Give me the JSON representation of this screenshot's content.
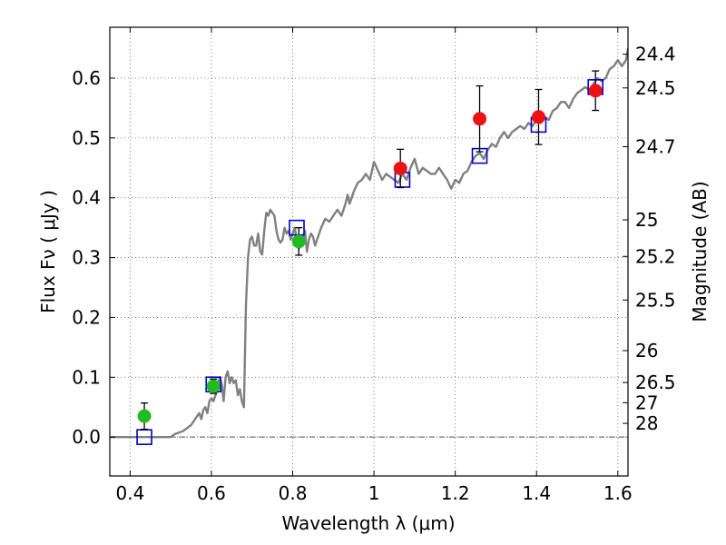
{
  "chart_data": {
    "type": "scatter",
    "title": "",
    "xlabel": "Wavelength  λ (μm)",
    "ylabel": "Flux  Fν  ( μJy )",
    "y2label": "Magnitude (AB)",
    "xlim": [
      0.35,
      1.625
    ],
    "ylim": [
      -0.065,
      0.685
    ],
    "grid": true,
    "xticks": [
      {
        "value": 0.4,
        "label": "0.4"
      },
      {
        "value": 0.6,
        "label": "0.6"
      },
      {
        "value": 0.8,
        "label": "0.8"
      },
      {
        "value": 1.0,
        "label": "1"
      },
      {
        "value": 1.2,
        "label": "1.2"
      },
      {
        "value": 1.4,
        "label": "1.4"
      },
      {
        "value": 1.6,
        "label": "1.6"
      }
    ],
    "yticks": [
      {
        "value": 0.0,
        "label": "0.0"
      },
      {
        "value": 0.1,
        "label": "0.1"
      },
      {
        "value": 0.2,
        "label": "0.2"
      },
      {
        "value": 0.3,
        "label": "0.3"
      },
      {
        "value": 0.4,
        "label": "0.4"
      },
      {
        "value": 0.5,
        "label": "0.5"
      },
      {
        "value": 0.6,
        "label": "0.6"
      }
    ],
    "magnitude_ticks": [
      {
        "flux": 0.6399,
        "label": "24.4"
      },
      {
        "flux": 0.5836,
        "label": "24.5"
      },
      {
        "flux": 0.4854,
        "label": "24.7"
      },
      {
        "flux": 0.3631,
        "label": "25"
      },
      {
        "flux": 0.302,
        "label": "25.2"
      },
      {
        "flux": 0.2291,
        "label": "25.5"
      },
      {
        "flux": 0.1445,
        "label": "26"
      },
      {
        "flux": 0.0912,
        "label": "26.5"
      },
      {
        "flux": 0.0575,
        "label": "27"
      },
      {
        "flux": 0.0229,
        "label": "28"
      }
    ],
    "series": [
      {
        "kind": "spectrum",
        "color": "#808080",
        "x": [
          0.35,
          0.5,
          0.51,
          0.53,
          0.55,
          0.56,
          0.57,
          0.575,
          0.58,
          0.585,
          0.59,
          0.595,
          0.6,
          0.605,
          0.61,
          0.615,
          0.62,
          0.625,
          0.63,
          0.635,
          0.64,
          0.645,
          0.65,
          0.655,
          0.66,
          0.665,
          0.67,
          0.675,
          0.68,
          0.685,
          0.69,
          0.695,
          0.7,
          0.705,
          0.71,
          0.715,
          0.72,
          0.725,
          0.73,
          0.735,
          0.74,
          0.745,
          0.75,
          0.755,
          0.76,
          0.765,
          0.77,
          0.775,
          0.78,
          0.785,
          0.79,
          0.795,
          0.8,
          0.805,
          0.81,
          0.815,
          0.82,
          0.825,
          0.83,
          0.835,
          0.84,
          0.845,
          0.85,
          0.855,
          0.86,
          0.87,
          0.88,
          0.89,
          0.9,
          0.91,
          0.92,
          0.93,
          0.935,
          0.94,
          0.945,
          0.95,
          0.96,
          0.97,
          0.98,
          0.99,
          1.0,
          1.01,
          1.02,
          1.03,
          1.04,
          1.05,
          1.06,
          1.07,
          1.08,
          1.09,
          1.1,
          1.11,
          1.12,
          1.13,
          1.14,
          1.15,
          1.16,
          1.17,
          1.18,
          1.19,
          1.2,
          1.21,
          1.22,
          1.23,
          1.24,
          1.25,
          1.26,
          1.27,
          1.28,
          1.29,
          1.3,
          1.31,
          1.32,
          1.33,
          1.34,
          1.35,
          1.36,
          1.37,
          1.38,
          1.39,
          1.4,
          1.41,
          1.42,
          1.43,
          1.44,
          1.45,
          1.46,
          1.47,
          1.48,
          1.49,
          1.5,
          1.51,
          1.52,
          1.53,
          1.54,
          1.55,
          1.56,
          1.57,
          1.58,
          1.59,
          1.6,
          1.61,
          1.62,
          1.625
        ],
        "y": [
          0.0,
          0.0,
          0.005,
          0.01,
          0.02,
          0.03,
          0.04,
          0.03,
          0.045,
          0.05,
          0.04,
          0.06,
          0.065,
          0.06,
          0.07,
          0.08,
          0.1,
          0.09,
          0.06,
          0.1,
          0.11,
          0.09,
          0.1,
          0.09,
          0.095,
          0.07,
          0.08,
          0.06,
          0.05,
          0.22,
          0.3,
          0.33,
          0.335,
          0.32,
          0.32,
          0.34,
          0.31,
          0.305,
          0.345,
          0.375,
          0.37,
          0.38,
          0.375,
          0.37,
          0.345,
          0.33,
          0.325,
          0.33,
          0.35,
          0.34,
          0.345,
          0.33,
          0.34,
          0.35,
          0.33,
          0.315,
          0.32,
          0.33,
          0.345,
          0.31,
          0.33,
          0.34,
          0.335,
          0.32,
          0.33,
          0.35,
          0.365,
          0.36,
          0.37,
          0.38,
          0.37,
          0.39,
          0.405,
          0.39,
          0.4,
          0.41,
          0.425,
          0.43,
          0.44,
          0.43,
          0.46,
          0.445,
          0.43,
          0.44,
          0.435,
          0.43,
          0.425,
          0.44,
          0.43,
          0.45,
          0.465,
          0.44,
          0.45,
          0.445,
          0.44,
          0.44,
          0.45,
          0.44,
          0.43,
          0.415,
          0.43,
          0.425,
          0.44,
          0.445,
          0.46,
          0.47,
          0.475,
          0.465,
          0.48,
          0.49,
          0.485,
          0.5,
          0.51,
          0.5,
          0.51,
          0.515,
          0.52,
          0.515,
          0.525,
          0.52,
          0.53,
          0.525,
          0.535,
          0.53,
          0.545,
          0.55,
          0.56,
          0.56,
          0.55,
          0.565,
          0.575,
          0.58,
          0.585,
          0.58,
          0.59,
          0.6,
          0.595,
          0.6,
          0.615,
          0.62,
          0.63,
          0.62,
          0.63,
          0.65
        ]
      },
      {
        "kind": "model",
        "marker": "square",
        "color": "#0000cc",
        "points": [
          {
            "x": 0.435,
            "y": 0.0
          },
          {
            "x": 0.605,
            "y": 0.088
          },
          {
            "x": 0.81,
            "y": 0.35
          },
          {
            "x": 1.07,
            "y": 0.43
          },
          {
            "x": 1.26,
            "y": 0.47
          },
          {
            "x": 1.405,
            "y": 0.522
          },
          {
            "x": 1.545,
            "y": 0.585
          }
        ]
      },
      {
        "kind": "observed",
        "marker": "circle",
        "color": "#22bb22",
        "points": [
          {
            "x": 0.435,
            "y": 0.035,
            "err": 0.022
          },
          {
            "x": 0.605,
            "y": 0.085,
            "err": 0.012
          },
          {
            "x": 0.815,
            "y": 0.327,
            "err": 0.023
          }
        ]
      },
      {
        "kind": "observed",
        "marker": "circle",
        "color": "#ee1111",
        "points": [
          {
            "x": 1.065,
            "y": 0.449,
            "err": 0.032
          },
          {
            "x": 1.26,
            "y": 0.532,
            "err": 0.055
          },
          {
            "x": 1.405,
            "y": 0.535,
            "err": 0.046
          },
          {
            "x": 1.545,
            "y": 0.579,
            "err": 0.033
          }
        ]
      }
    ]
  }
}
